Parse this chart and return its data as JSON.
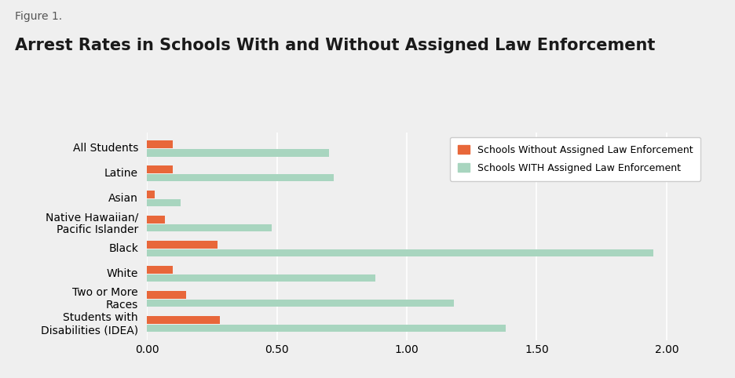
{
  "figure_label": "Figure 1.",
  "title": "Arrest Rates in Schools With and Without Assigned Law Enforcement",
  "categories": [
    "All Students",
    "Latine",
    "Asian",
    "Native Hawaiian/\nPacific Islander",
    "Black",
    "White",
    "Two or More\nRaces",
    "Students with\nDisabilities (IDEA)"
  ],
  "without_enforcement": [
    0.1,
    0.1,
    0.03,
    0.07,
    0.27,
    0.1,
    0.15,
    0.28
  ],
  "with_enforcement": [
    0.7,
    0.72,
    0.13,
    0.48,
    1.95,
    0.88,
    1.18,
    1.38
  ],
  "color_without": "#E8673A",
  "color_with": "#A8D5BF",
  "background_color": "#EFEFEF",
  "legend_without": "Schools Without Assigned Law Enforcement",
  "legend_with": "Schools WITH Assigned Law Enforcement",
  "xlim": [
    0,
    2.15
  ],
  "xticks": [
    0.0,
    0.5,
    1.0,
    1.5,
    2.0
  ],
  "xticklabels": [
    "0.00",
    "0.50",
    "1.00",
    "1.50",
    "2.00"
  ],
  "bar_height": 0.3,
  "bar_gap": 0.03,
  "title_fontsize": 15,
  "label_fontsize": 10,
  "tick_fontsize": 10,
  "figure_label_fontsize": 10
}
